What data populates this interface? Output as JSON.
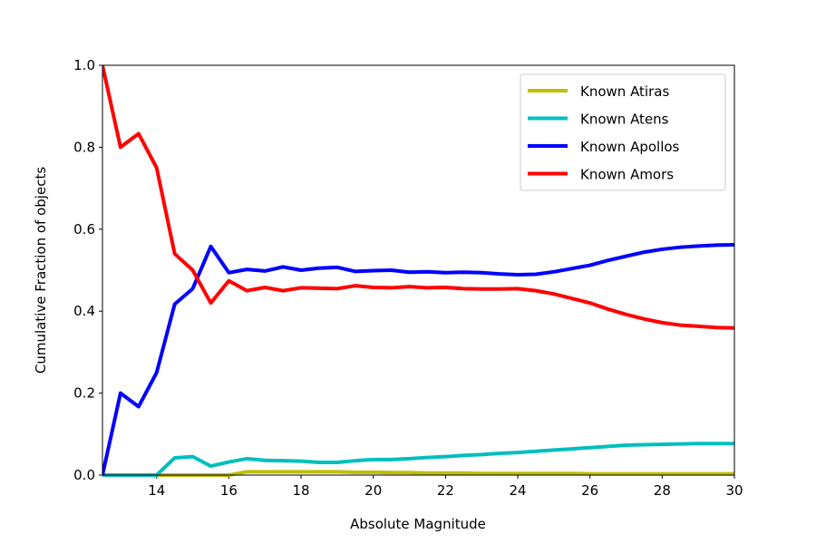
{
  "chart_data": {
    "type": "line",
    "xlabel": "Absolute Magnitude",
    "ylabel": "Cumulative Fraction of objects",
    "x": [
      12.5,
      13,
      13.5,
      14,
      14.5,
      15,
      15.5,
      16,
      16.5,
      17,
      17.5,
      18,
      18.5,
      19,
      19.5,
      20,
      20.5,
      21,
      21.5,
      22,
      22.5,
      23,
      23.5,
      24,
      24.5,
      25,
      25.5,
      26,
      26.5,
      27,
      27.5,
      28,
      28.5,
      29,
      29.5,
      30
    ],
    "series": [
      {
        "name": "Known Atiras",
        "color": "#bfbf00",
        "values": [
          0,
          0,
          0,
          0,
          0,
          0,
          0,
          0,
          0.008,
          0.008,
          0.008,
          0.008,
          0.008,
          0.008,
          0.007,
          0.007,
          0.006,
          0.006,
          0.005,
          0.005,
          0.005,
          0.004,
          0.004,
          0.004,
          0.004,
          0.004,
          0.004,
          0.003,
          0.003,
          0.003,
          0.003,
          0.003,
          0.003,
          0.003,
          0.003,
          0.003
        ]
      },
      {
        "name": "Known Atens",
        "color": "#00bfbf",
        "values": [
          0,
          0,
          0,
          0,
          0.042,
          0.045,
          0.022,
          0.032,
          0.04,
          0.036,
          0.035,
          0.034,
          0.031,
          0.031,
          0.035,
          0.038,
          0.038,
          0.04,
          0.043,
          0.045,
          0.048,
          0.05,
          0.053,
          0.055,
          0.058,
          0.061,
          0.064,
          0.067,
          0.07,
          0.073,
          0.074,
          0.075,
          0.076,
          0.077,
          0.077,
          0.077
        ]
      },
      {
        "name": "Known Apollos",
        "color": "#0000ff",
        "values": [
          0,
          0.2,
          0.167,
          0.25,
          0.417,
          0.455,
          0.558,
          0.494,
          0.502,
          0.498,
          0.508,
          0.5,
          0.505,
          0.507,
          0.497,
          0.499,
          0.5,
          0.495,
          0.496,
          0.494,
          0.495,
          0.494,
          0.491,
          0.489,
          0.49,
          0.496,
          0.504,
          0.512,
          0.524,
          0.534,
          0.544,
          0.551,
          0.556,
          0.559,
          0.561,
          0.562
        ]
      },
      {
        "name": "Known Amors",
        "color": "#ff0000",
        "values": [
          1.0,
          0.8,
          0.833,
          0.75,
          0.54,
          0.5,
          0.42,
          0.474,
          0.45,
          0.458,
          0.45,
          0.457,
          0.456,
          0.455,
          0.462,
          0.458,
          0.457,
          0.46,
          0.457,
          0.458,
          0.455,
          0.454,
          0.454,
          0.455,
          0.45,
          0.442,
          0.431,
          0.42,
          0.405,
          0.392,
          0.381,
          0.372,
          0.366,
          0.363,
          0.36,
          0.359
        ]
      }
    ],
    "xlim": [
      12.5,
      30
    ],
    "xticks": [
      14,
      16,
      18,
      20,
      22,
      24,
      26,
      28,
      30
    ],
    "ylim": [
      0,
      1
    ],
    "yticks": [
      {
        "value": 0,
        "label": "0.0"
      },
      0.2,
      0.4,
      0.6,
      0.8,
      {
        "value": 1,
        "label": "1.0"
      }
    ],
    "legend": "upper right"
  }
}
